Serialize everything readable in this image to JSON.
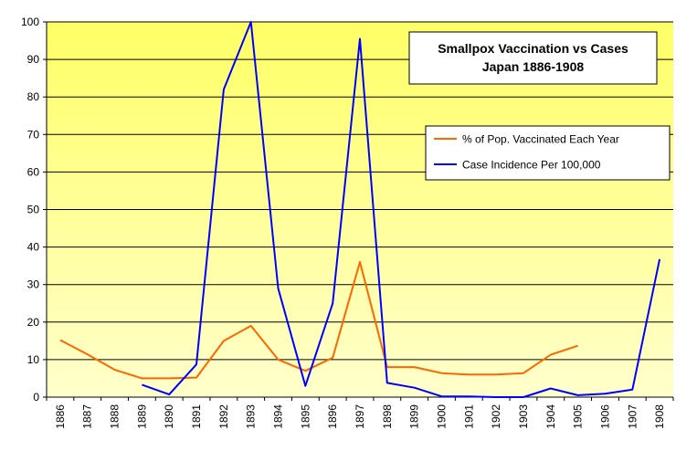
{
  "chart_data": {
    "type": "line",
    "title": "Smallpox Vaccination vs Cases",
    "subtitle": "Japan 1886-1908",
    "xlabel": "",
    "ylabel": "",
    "categories": [
      "1886",
      "1887",
      "1888",
      "1889",
      "1890",
      "1891",
      "1892",
      "1893",
      "1894",
      "1895",
      "1896",
      "1897",
      "1898",
      "1899",
      "1900",
      "1901",
      "1902",
      "1903",
      "1904",
      "1905",
      "1906",
      "1907",
      "1908"
    ],
    "ylim": [
      0,
      100
    ],
    "yticks": [
      "0",
      "10",
      "20",
      "30",
      "40",
      "50",
      "60",
      "70",
      "80",
      "90",
      "100"
    ],
    "grid": true,
    "legend_position": "right",
    "series": [
      {
        "name": "% of Pop. Vaccinated Each Year",
        "color": "#ff6600",
        "values": [
          15.2,
          11.4,
          7.3,
          5.0,
          5.0,
          5.2,
          15.0,
          19.0,
          10.0,
          7.0,
          10.5,
          36.0,
          8.0,
          8.0,
          6.4,
          6.0,
          6.0,
          6.4,
          11.3,
          13.7,
          null,
          null,
          null
        ]
      },
      {
        "name": "Case Incidence Per 100,000",
        "color": "#0000ff",
        "values": [
          null,
          null,
          null,
          3.3,
          0.7,
          8.7,
          82.0,
          100.0,
          29.0,
          3.0,
          25.0,
          95.5,
          3.8,
          2.5,
          0.2,
          0.2,
          0.0,
          0.0,
          2.3,
          0.5,
          0.9,
          2.0,
          36.8
        ]
      }
    ],
    "colors": {
      "plot_top": "#ffff66",
      "plot_bottom": "#ffffcc",
      "gridline": "#000000"
    }
  }
}
